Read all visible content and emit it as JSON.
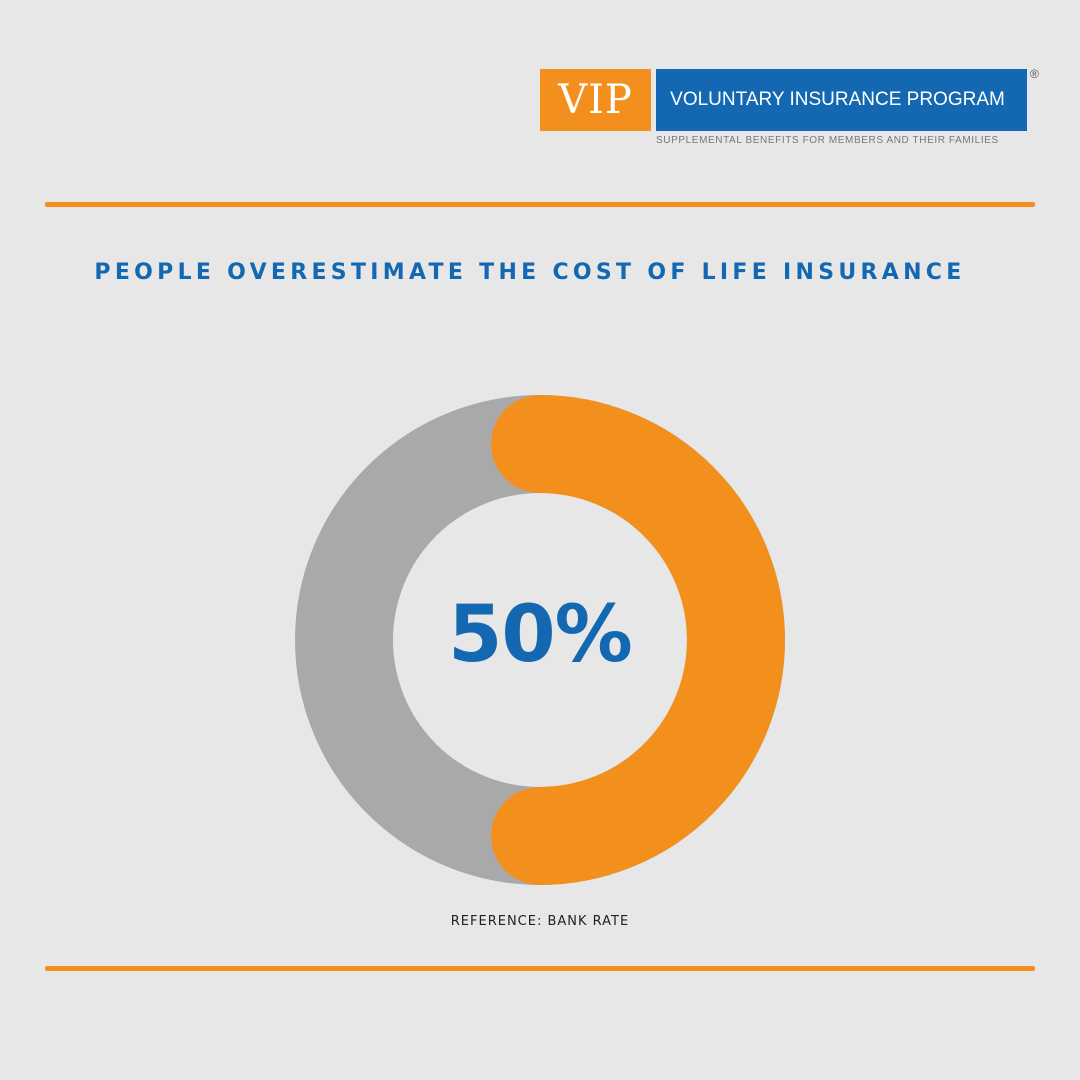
{
  "logo": {
    "abbr": "VIP",
    "name": "VOLUNTARY INSURANCE PROGRAM",
    "registered": "®",
    "tagline": "SUPPLEMENTAL BENEFITS FOR MEMBERS AND THEIR FAMILIES"
  },
  "colors": {
    "accent": "#f3901d",
    "brand": "#1468b2",
    "track": "#a9a9a9",
    "background": "#e6e7e6"
  },
  "chart_data": {
    "type": "pie",
    "title": "PEOPLE OVERESTIMATE THE COST OF LIFE INSURANCE",
    "center_label": "50%",
    "slices": [
      {
        "value": 50,
        "color": "#f3901d"
      },
      {
        "value": 50,
        "color": "#a9a9a9"
      }
    ],
    "note": "REFERENCE: BANK RATE"
  }
}
